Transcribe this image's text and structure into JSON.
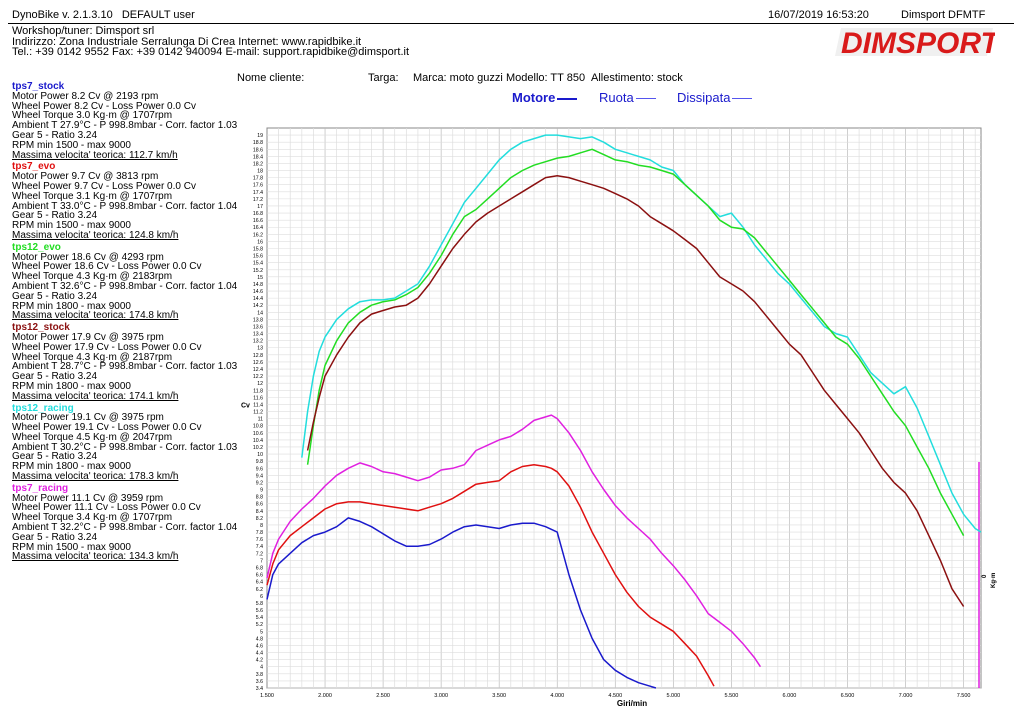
{
  "header": {
    "app_version": "DynoBike v. 2.1.3.10",
    "user": "DEFAULT user",
    "datetime": "16/07/2019 16:53:20",
    "shop_code": "Dimsport DFMTF",
    "workshop": "Workshop/tuner: Dimsport srl",
    "address": "Indirizzo: Zona Industriale Serralunga Di Crea Internet: www.rapidbike.it",
    "contacts": "Tel.: +39 0142 9552 Fax: +39 0142 940094 E-mail: support.rapidbike@dimsport.it",
    "logo_text": "DIMSPORT",
    "logo_color": "#d91a1a"
  },
  "vehicle": {
    "client": "Nome cliente:",
    "plate": "Targa:",
    "brand": "Marca: moto guzzi",
    "model": "Modello: TT 850",
    "trim": "Allestimento: stock"
  },
  "legend": [
    {
      "label": "Motore",
      "color": "#1a1acc",
      "bold": true
    },
    {
      "label": "Ruota",
      "color": "#1a1acc",
      "bold": false
    },
    {
      "label": "Dissipata",
      "color": "#1a1acc",
      "bold": false
    }
  ],
  "runs": [
    {
      "name": "tps7_stock",
      "color": "#1a1acc",
      "lines": [
        "Motor Power 8.2 Cv  @ 2193 rpm",
        "Wheel Power 8.2 Cv  - Loss Power 0.0 Cv",
        "Wheel Torque 3.0 Kg·m  @ 1707rpm",
        "Ambient T 27.9°C - P 998.8mbar - Corr. factor 1.03",
        "Gear 5 - Ratio 3.24",
        "RPM min 1500 - max 9000"
      ],
      "speed": "Massima velocita' teorica: 112.7 km/h"
    },
    {
      "name": "tps7_evo",
      "color": "#e01010",
      "lines": [
        "Motor Power 9.7 Cv  @ 3813 rpm",
        "Wheel Power 9.7 Cv  - Loss Power 0.0 Cv",
        "Wheel Torque 3.1 Kg·m  @ 1707rpm",
        "Ambient T 33.0°C - P 998.8mbar - Corr. factor 1.04",
        "Gear 5 - Ratio 3.24",
        "RPM min 1500 - max 9000"
      ],
      "speed": "Massima velocita' teorica: 124.8 km/h"
    },
    {
      "name": "tps12_evo",
      "color": "#22dd22",
      "lines": [
        "Motor Power 18.6 Cv  @ 4293 rpm",
        "Wheel Power 18.6 Cv  - Loss Power 0.0 Cv",
        "Wheel Torque 4.3 Kg·m  @ 2183rpm",
        "Ambient T 32.6°C - P 998.8mbar - Corr. factor 1.04",
        "Gear 5 - Ratio 3.24",
        "RPM min 1800 - max 9000"
      ],
      "speed": "Massima velocita' teorica: 174.8 km/h"
    },
    {
      "name": "tps12_stock",
      "color": "#8b1010",
      "lines": [
        "Motor Power 17.9 Cv  @ 3975 rpm",
        "Wheel Power 17.9 Cv  - Loss Power 0.0 Cv",
        "Wheel Torque 4.3 Kg·m  @ 2187rpm",
        "Ambient T 28.7°C - P 998.8mbar - Corr. factor 1.03",
        "Gear 5 - Ratio 3.24",
        "RPM min 1800 - max 9000"
      ],
      "speed": "Massima velocita' teorica: 174.1 km/h"
    },
    {
      "name": "tps12_racing",
      "color": "#22dddd",
      "lines": [
        "Motor Power 19.1 Cv  @ 3975 rpm",
        "Wheel Power 19.1 Cv  - Loss Power 0.0 Cv",
        "Wheel Torque 4.5 Kg·m  @ 2047rpm",
        "Ambient T 30.2°C - P 998.8mbar - Corr. factor 1.03",
        "Gear 5 - Ratio 3.24",
        "RPM min 1800 - max 9000"
      ],
      "speed": "Massima velocita' teorica: 178.3 km/h"
    },
    {
      "name": "tps7_racing",
      "color": "#e020e0",
      "lines": [
        "Motor Power 11.1 Cv  @ 3959 rpm",
        "Wheel Power 11.1 Cv  - Loss Power 0.0 Cv",
        "Wheel Torque 3.4 Kg·m  @ 1707rpm",
        "Ambient T 32.2°C - P 998.8mbar - Corr. factor 1.04",
        "Gear 5 - Ratio 3.24",
        "RPM min 1500 - max 9000"
      ],
      "speed": "Massima velocita' teorica: 134.3 km/h"
    }
  ],
  "chart_data": {
    "type": "line",
    "xlabel": "Giri/min",
    "ylabel_left": "Cv",
    "ylabel_right_a": "0",
    "ylabel_right_b": "Kg·m",
    "xlim": [
      1500,
      7650
    ],
    "ylim": [
      3.4,
      19.2
    ],
    "xticks": [
      1500,
      2000,
      2500,
      3000,
      3500,
      4000,
      4500,
      5000,
      5500,
      6000,
      6500,
      7000,
      7500
    ],
    "xtick_labels": [
      "1.500",
      "2.000",
      "2.500",
      "3.000",
      "3.500",
      "4.000",
      "4.500",
      "5.000",
      "5.500",
      "6.000",
      "6.500",
      "7.000",
      "7.500"
    ],
    "yticks": [
      3.4,
      3.6,
      3.8,
      4,
      4.2,
      4.4,
      4.6,
      4.8,
      5,
      5.2,
      5.4,
      5.6,
      5.8,
      6,
      6.2,
      6.4,
      6.6,
      6.8,
      7,
      7.2,
      7.4,
      7.6,
      7.8,
      8,
      8.2,
      8.4,
      8.6,
      8.8,
      9,
      9.2,
      9.4,
      9.6,
      9.8,
      10,
      10.2,
      10.4,
      10.6,
      10.8,
      11,
      11.2,
      11.4,
      11.6,
      11.8,
      12,
      12.2,
      12.4,
      12.6,
      12.8,
      13,
      13.2,
      13.4,
      13.6,
      13.8,
      14,
      14.2,
      14.4,
      14.6,
      14.8,
      15,
      15.2,
      15.4,
      15.6,
      15.8,
      16,
      16.2,
      16.4,
      16.6,
      16.8,
      17,
      17.2,
      17.4,
      17.6,
      17.8,
      18,
      18.2,
      18.4,
      18.6,
      18.8,
      19
    ],
    "grid": true,
    "series": [
      {
        "name": "tps12_racing",
        "color": "#22dddd",
        "x": [
          1800,
          1850,
          1900,
          1950,
          2000,
          2100,
          2200,
          2300,
          2400,
          2500,
          2600,
          2700,
          2800,
          2900,
          3000,
          3100,
          3200,
          3300,
          3400,
          3500,
          3600,
          3700,
          3800,
          3900,
          4000,
          4100,
          4200,
          4300,
          4400,
          4500,
          4600,
          4700,
          4800,
          4900,
          5000,
          5100,
          5200,
          5300,
          5400,
          5500,
          5600,
          5700,
          5800,
          5900,
          6000,
          6100,
          6200,
          6300,
          6400,
          6500,
          6600,
          6700,
          6800,
          6900,
          7000,
          7100,
          7200,
          7300,
          7400,
          7500,
          7600,
          7650
        ],
        "y": [
          9.9,
          11.2,
          12.2,
          12.9,
          13.3,
          13.8,
          14.1,
          14.3,
          14.35,
          14.35,
          14.4,
          14.6,
          14.8,
          15.3,
          15.9,
          16.5,
          17.1,
          17.5,
          17.9,
          18.3,
          18.6,
          18.8,
          18.9,
          19.0,
          19.0,
          18.95,
          18.9,
          18.95,
          18.8,
          18.6,
          18.5,
          18.4,
          18.3,
          18.1,
          18.0,
          17.6,
          17.3,
          17.0,
          16.7,
          16.8,
          16.4,
          15.9,
          15.5,
          15.1,
          14.8,
          14.4,
          14.0,
          13.6,
          13.4,
          13.3,
          12.8,
          12.3,
          12.0,
          11.7,
          11.9,
          11.3,
          10.5,
          9.7,
          8.9,
          8.3,
          7.9,
          7.8
        ]
      },
      {
        "name": "tps12_evo",
        "color": "#22dd22",
        "x": [
          1850,
          1900,
          1950,
          2000,
          2100,
          2200,
          2300,
          2400,
          2500,
          2600,
          2700,
          2800,
          2900,
          3000,
          3100,
          3200,
          3300,
          3400,
          3500,
          3600,
          3700,
          3800,
          3900,
          4000,
          4100,
          4200,
          4300,
          4400,
          4500,
          4600,
          4700,
          4800,
          4900,
          5000,
          5100,
          5200,
          5300,
          5400,
          5500,
          5600,
          5700,
          5800,
          5900,
          6000,
          6100,
          6200,
          6300,
          6400,
          6500,
          6600,
          6700,
          6800,
          6900,
          7000,
          7100,
          7200,
          7300,
          7400,
          7500
        ],
        "y": [
          9.7,
          10.8,
          11.8,
          12.5,
          13.2,
          13.7,
          14.0,
          14.2,
          14.3,
          14.35,
          14.5,
          14.7,
          15.1,
          15.6,
          16.2,
          16.7,
          16.9,
          17.2,
          17.5,
          17.8,
          18.0,
          18.15,
          18.25,
          18.35,
          18.4,
          18.5,
          18.6,
          18.45,
          18.3,
          18.25,
          18.15,
          18.1,
          18.0,
          17.9,
          17.6,
          17.3,
          17.0,
          16.6,
          16.4,
          16.35,
          16.1,
          15.7,
          15.3,
          14.9,
          14.5,
          14.1,
          13.7,
          13.3,
          13.1,
          12.7,
          12.2,
          11.7,
          11.2,
          10.8,
          10.2,
          9.6,
          8.9,
          8.3,
          7.7
        ]
      },
      {
        "name": "tps12_stock",
        "color": "#8b1010",
        "x": [
          1850,
          1900,
          1950,
          2000,
          2100,
          2200,
          2300,
          2400,
          2500,
          2600,
          2700,
          2800,
          2900,
          3000,
          3100,
          3200,
          3300,
          3400,
          3500,
          3600,
          3700,
          3800,
          3900,
          4000,
          4100,
          4200,
          4300,
          4400,
          4500,
          4600,
          4700,
          4800,
          4900,
          5000,
          5100,
          5200,
          5300,
          5400,
          5500,
          5600,
          5700,
          5800,
          5900,
          6000,
          6100,
          6200,
          6300,
          6400,
          6500,
          6600,
          6700,
          6800,
          6900,
          7000,
          7100,
          7200,
          7300,
          7400,
          7500
        ],
        "y": [
          10.1,
          10.9,
          11.6,
          12.2,
          12.8,
          13.3,
          13.7,
          13.95,
          14.05,
          14.15,
          14.2,
          14.4,
          14.8,
          15.3,
          15.8,
          16.2,
          16.55,
          16.8,
          17.0,
          17.2,
          17.4,
          17.6,
          17.8,
          17.85,
          17.8,
          17.7,
          17.6,
          17.5,
          17.35,
          17.2,
          17.0,
          16.7,
          16.5,
          16.3,
          16.05,
          15.8,
          15.4,
          15.0,
          14.8,
          14.6,
          14.3,
          13.9,
          13.5,
          13.1,
          12.8,
          12.3,
          11.8,
          11.4,
          11.0,
          10.6,
          10.1,
          9.6,
          9.2,
          8.9,
          8.4,
          7.7,
          7.0,
          6.2,
          5.7
        ]
      },
      {
        "name": "tps7_racing",
        "color": "#e020e0",
        "x": [
          1500,
          1550,
          1600,
          1700,
          1800,
          1900,
          2000,
          2100,
          2200,
          2300,
          2400,
          2500,
          2600,
          2700,
          2800,
          2900,
          3000,
          3100,
          3200,
          3300,
          3400,
          3500,
          3600,
          3700,
          3800,
          3900,
          3950,
          4000,
          4100,
          4200,
          4300,
          4400,
          4500,
          4600,
          4700,
          4800,
          4900,
          5000,
          5100,
          5200,
          5300,
          5400,
          5500,
          5600,
          5700,
          5750
        ],
        "y": [
          6.5,
          7.2,
          7.6,
          8.1,
          8.45,
          8.75,
          9.1,
          9.4,
          9.6,
          9.75,
          9.65,
          9.5,
          9.45,
          9.35,
          9.25,
          9.35,
          9.55,
          9.6,
          9.7,
          10.1,
          10.25,
          10.4,
          10.5,
          10.7,
          10.95,
          11.05,
          11.1,
          11.0,
          10.6,
          10.1,
          9.5,
          9.0,
          8.55,
          8.2,
          7.9,
          7.6,
          7.2,
          6.85,
          6.45,
          6.0,
          5.5,
          5.25,
          5.0,
          4.65,
          4.25,
          4.0
        ]
      },
      {
        "name": "tps7_evo",
        "color": "#e01010",
        "x": [
          1500,
          1550,
          1600,
          1700,
          1800,
          1900,
          2000,
          2100,
          2200,
          2300,
          2400,
          2500,
          2600,
          2700,
          2800,
          2900,
          3000,
          3100,
          3200,
          3300,
          3400,
          3500,
          3600,
          3700,
          3800,
          3900,
          3950,
          4000,
          4100,
          4200,
          4300,
          4400,
          4500,
          4600,
          4700,
          4800,
          4900,
          5000,
          5100,
          5200,
          5300,
          5350
        ],
        "y": [
          6.3,
          6.9,
          7.3,
          7.7,
          7.95,
          8.2,
          8.45,
          8.6,
          8.65,
          8.65,
          8.6,
          8.55,
          8.5,
          8.45,
          8.4,
          8.5,
          8.6,
          8.75,
          8.95,
          9.15,
          9.2,
          9.25,
          9.5,
          9.65,
          9.7,
          9.65,
          9.6,
          9.5,
          9.1,
          8.5,
          7.8,
          7.2,
          6.6,
          6.1,
          5.7,
          5.4,
          5.2,
          5.0,
          4.65,
          4.3,
          3.75,
          3.45
        ]
      },
      {
        "name": "tps7_stock",
        "color": "#1a1acc",
        "x": [
          1500,
          1550,
          1600,
          1700,
          1800,
          1900,
          2000,
          2100,
          2200,
          2300,
          2400,
          2500,
          2600,
          2700,
          2800,
          2900,
          3000,
          3100,
          3200,
          3300,
          3400,
          3500,
          3600,
          3700,
          3800,
          3900,
          4000,
          4100,
          4200,
          4300,
          4400,
          4500,
          4600,
          4700,
          4800,
          4850
        ],
        "y": [
          5.9,
          6.6,
          6.9,
          7.2,
          7.5,
          7.7,
          7.8,
          7.95,
          8.2,
          8.1,
          7.95,
          7.75,
          7.55,
          7.4,
          7.4,
          7.45,
          7.6,
          7.8,
          7.95,
          8.0,
          7.95,
          7.9,
          8.0,
          8.05,
          8.05,
          7.95,
          7.8,
          6.6,
          5.6,
          4.8,
          4.2,
          3.9,
          3.7,
          3.55,
          3.45,
          3.4
        ]
      }
    ]
  }
}
